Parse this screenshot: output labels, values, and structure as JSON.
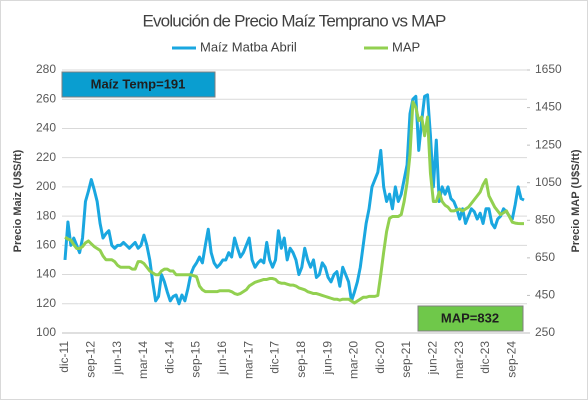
{
  "chart_data": {
    "type": "line",
    "title": "Evolución de Precio Maíz Temprano vs MAP",
    "y_label": "Precio Maiz (U$S/tt)",
    "y2_label": "Precio MAP (U$S/tt)",
    "annotations": [
      "Maíz Temp=191",
      "MAP=832"
    ],
    "categories": [
      "dic-11",
      null,
      null,
      null,
      null,
      null,
      null,
      null,
      null,
      "sep-12",
      null,
      null,
      null,
      null,
      null,
      null,
      null,
      null,
      "jun-13",
      null,
      null,
      null,
      null,
      null,
      null,
      null,
      null,
      "mar-14",
      null,
      null,
      null,
      null,
      null,
      null,
      null,
      null,
      "dic-14",
      null,
      null,
      null,
      null,
      null,
      null,
      null,
      null,
      "sep-15",
      null,
      null,
      null,
      null,
      null,
      null,
      null,
      null,
      "jun-16",
      null,
      null,
      null,
      null,
      null,
      null,
      null,
      null,
      "mar-17",
      null,
      null,
      null,
      null,
      null,
      null,
      null,
      null,
      "dic-17",
      null,
      null,
      null,
      null,
      null,
      null,
      null,
      null,
      "sep-18",
      null,
      null,
      null,
      null,
      null,
      null,
      null,
      null,
      "jun-19",
      null,
      null,
      null,
      null,
      null,
      null,
      null,
      null,
      "mar-20",
      null,
      null,
      null,
      null,
      null,
      null,
      null,
      null,
      "dic-20",
      null,
      null,
      null,
      null,
      null,
      null,
      null,
      null,
      "sep-21",
      null,
      null,
      null,
      null,
      null,
      null,
      null,
      null,
      "jun-22",
      null,
      null,
      null,
      null,
      null,
      null,
      null,
      null,
      "mar-23",
      null,
      null,
      null,
      null,
      null,
      null,
      null,
      null,
      "dic-23",
      null,
      null,
      null,
      null,
      null,
      null,
      null,
      null,
      "sep-24",
      null,
      null,
      null,
      null
    ],
    "series": [
      {
        "name": "Maíz Matba Abril",
        "color": "#1aa7e0",
        "values": [
          150,
          176,
          160,
          165,
          160,
          155,
          165,
          190,
          197,
          205,
          198,
          190,
          175,
          165,
          168,
          170,
          160,
          158,
          160,
          160,
          162,
          160,
          158,
          160,
          162,
          158,
          160,
          167,
          160,
          150,
          135,
          122,
          125,
          140,
          135,
          128,
          122,
          125,
          126,
          120,
          126,
          122,
          130,
          140,
          145,
          148,
          152,
          148,
          160,
          171,
          155,
          148,
          145,
          147,
          150,
          150,
          155,
          152,
          165,
          158,
          152,
          155,
          160,
          165,
          150,
          145,
          148,
          150,
          148,
          162,
          150,
          145,
          150,
          170,
          158,
          165,
          150,
          158,
          155,
          150,
          140,
          145,
          158,
          150,
          145,
          150,
          138,
          140,
          148,
          145,
          138,
          135,
          140,
          142,
          132,
          145,
          140,
          135,
          122,
          128,
          135,
          145,
          160,
          175,
          185,
          200,
          205,
          210,
          225,
          200,
          190,
          195,
          185,
          200,
          190,
          195,
          205,
          215,
          250,
          260,
          262,
          225,
          245,
          262,
          263,
          235,
          200,
          232,
          190,
          200,
          195,
          200,
          192,
          190,
          185,
          178,
          185,
          175,
          180,
          185,
          183,
          178,
          182,
          175,
          185,
          185,
          175,
          172,
          178,
          180,
          185,
          183,
          180,
          178,
          188,
          200,
          192,
          191
        ]
      },
      {
        "name": "MAP",
        "color": "#92d050",
        "axis": "y2",
        "values": [
          760,
          750,
          745,
          720,
          700,
          700,
          710,
          730,
          740,
          725,
          710,
          700,
          690,
          660,
          640,
          640,
          640,
          630,
          610,
          600,
          600,
          600,
          600,
          590,
          590,
          630,
          630,
          620,
          600,
          580,
          570,
          560,
          560,
          580,
          590,
          590,
          580,
          580,
          560,
          560,
          560,
          560,
          560,
          560,
          555,
          550,
          500,
          480,
          470,
          470,
          470,
          470,
          470,
          475,
          475,
          475,
          475,
          470,
          460,
          455,
          460,
          470,
          480,
          500,
          510,
          520,
          525,
          530,
          535,
          535,
          540,
          540,
          535,
          520,
          515,
          515,
          510,
          505,
          505,
          500,
          490,
          485,
          480,
          470,
          465,
          460,
          460,
          455,
          450,
          445,
          440,
          435,
          430,
          430,
          425,
          430,
          430,
          430,
          420,
          410,
          420,
          430,
          440,
          440,
          445,
          445,
          445,
          450,
          560,
          680,
          790,
          860,
          870,
          870,
          870,
          880,
          950,
          1050,
          1200,
          1480,
          1450,
          1380,
          1400,
          1300,
          1400,
          1100,
          950,
          950,
          1000,
          950,
          930,
          920,
          900,
          900,
          905,
          910,
          900,
          910,
          920,
          940,
          960,
          980,
          1000,
          1040,
          1067,
          980,
          950,
          920,
          900,
          880,
          890,
          900,
          870,
          840,
          835,
          833,
          832,
          832
        ]
      }
    ],
    "ylim": [
      100,
      280
    ],
    "yticks": [
      100,
      120,
      140,
      160,
      180,
      200,
      220,
      240,
      260,
      280
    ],
    "y2lim": [
      250,
      1650
    ],
    "y2ticks": [
      250,
      450,
      650,
      850,
      1050,
      1250,
      1450,
      1650
    ],
    "grid": true
  }
}
